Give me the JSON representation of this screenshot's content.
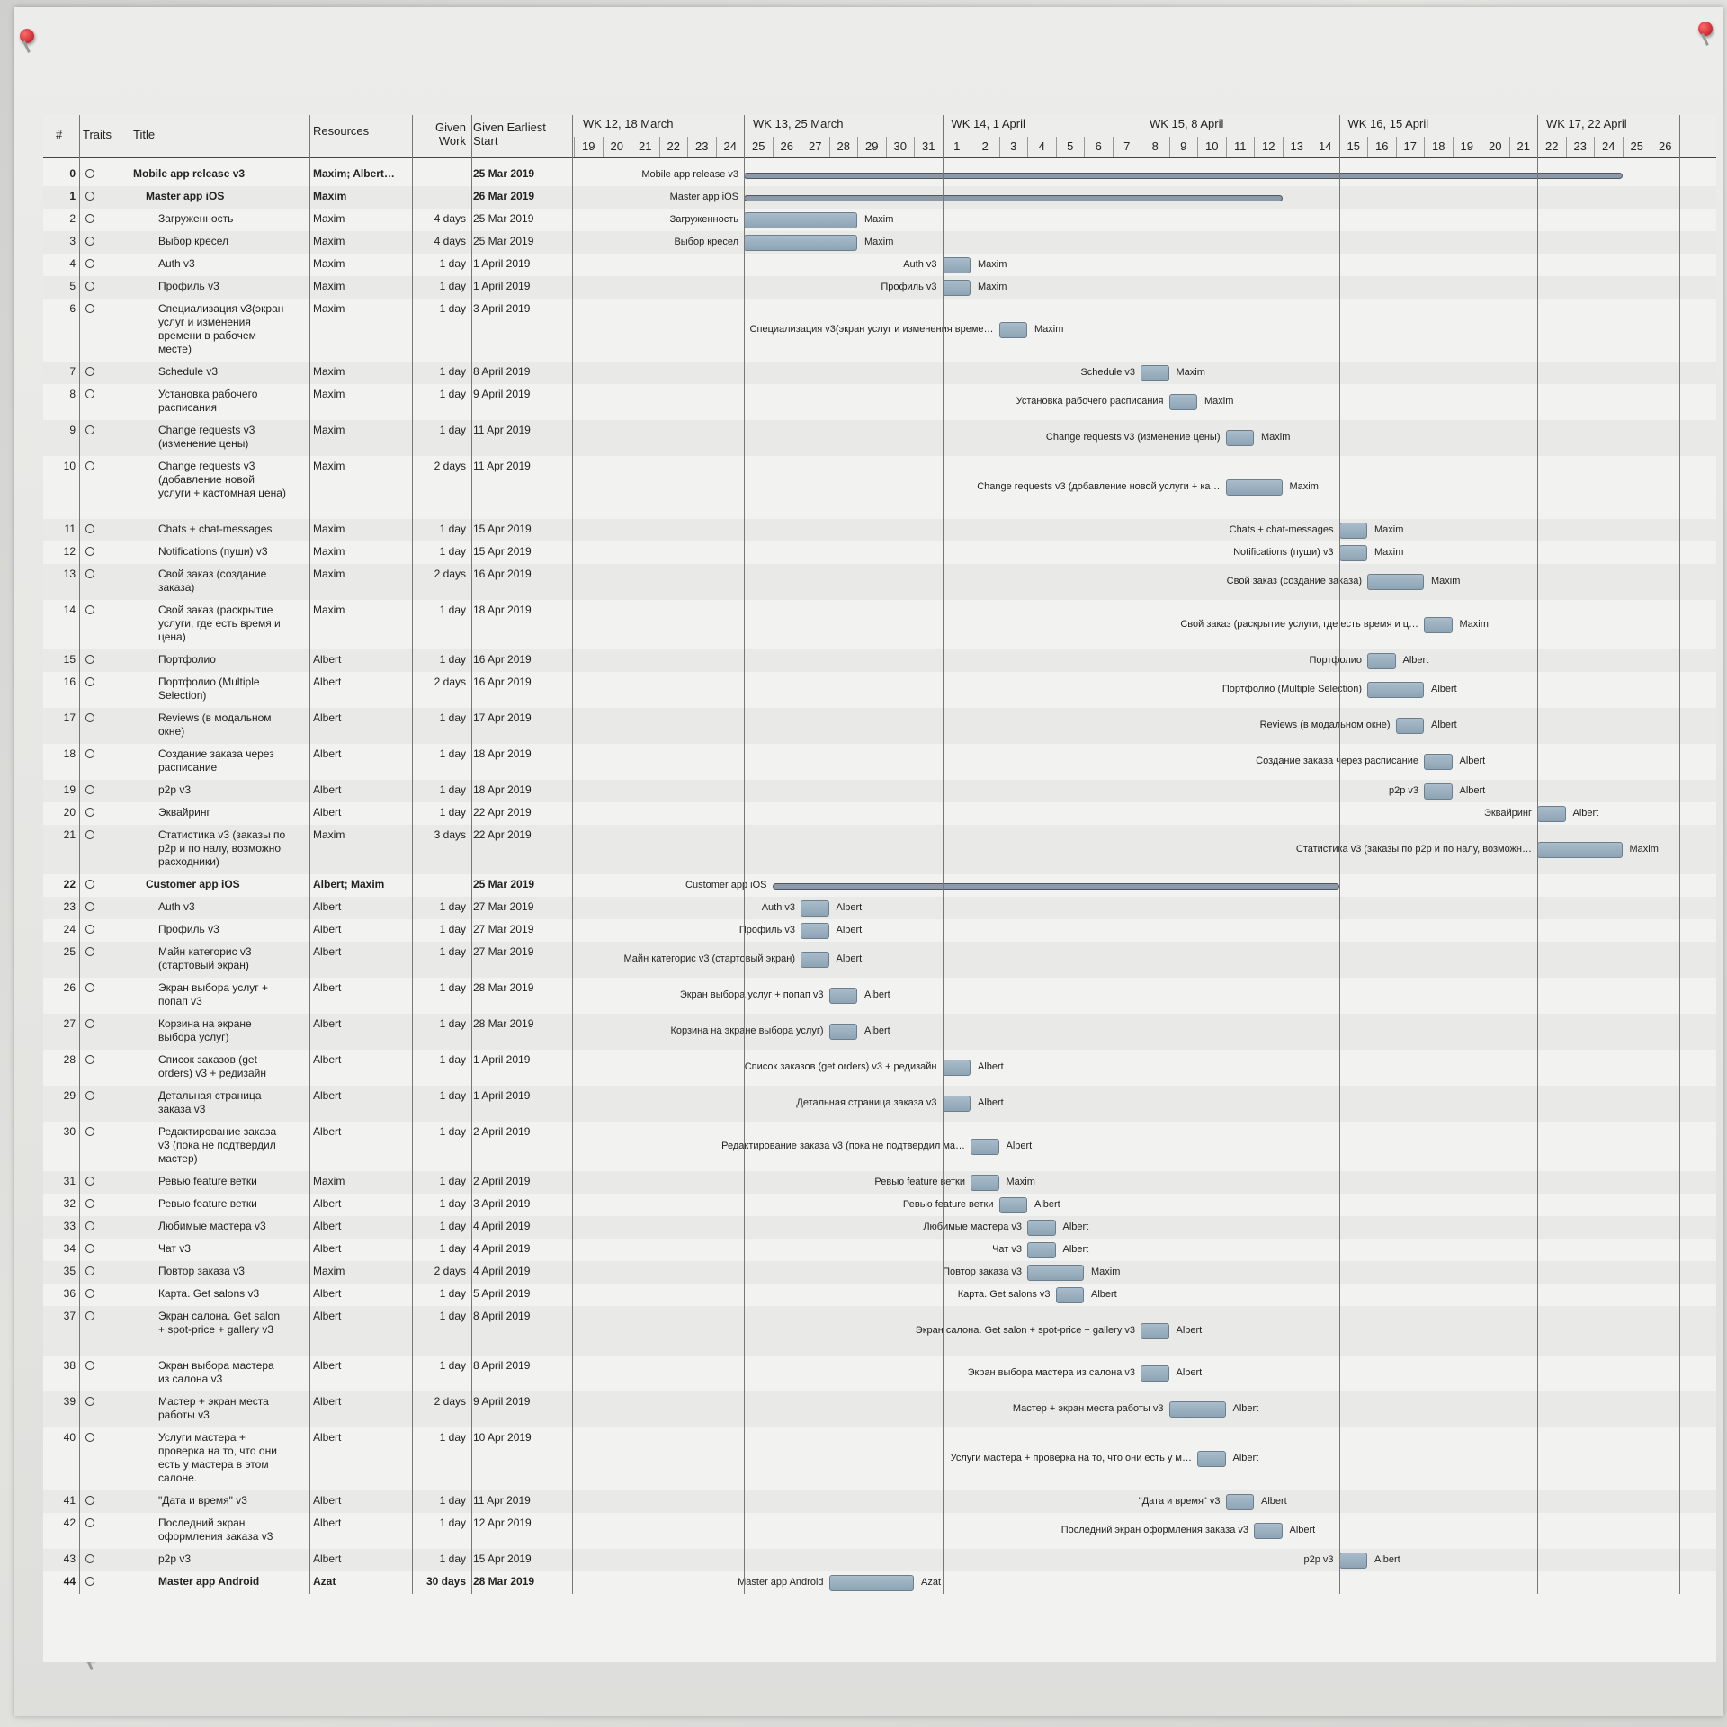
{
  "header": {
    "num": "#",
    "traits": "Traits",
    "title": "Title",
    "resources": "Resources",
    "given_work": "Given\nWork",
    "given_start": "Given Earliest\nStart"
  },
  "weeks": [
    {
      "label": "WK 12, 18 March",
      "days": [
        "19",
        "20",
        "21",
        "22",
        "23",
        "24"
      ]
    },
    {
      "label": "WK 13, 25 March",
      "days": [
        "25",
        "26",
        "27",
        "28",
        "29",
        "30",
        "31"
      ]
    },
    {
      "label": "WK 14, 1 April",
      "days": [
        "1",
        "2",
        "3",
        "4",
        "5",
        "6",
        "7"
      ]
    },
    {
      "label": "WK 15, 8 April",
      "days": [
        "8",
        "9",
        "10",
        "11",
        "12",
        "13",
        "14"
      ]
    },
    {
      "label": "WK 16, 15 April",
      "days": [
        "15",
        "16",
        "17",
        "18",
        "19",
        "20",
        "21"
      ]
    },
    {
      "label": "WK 17, 22 April",
      "days": [
        "22",
        "23",
        "24",
        "25",
        "26"
      ]
    }
  ],
  "tasks": [
    {
      "n": "0",
      "title": "Mobile app release v3",
      "res": "Maxim; Albert…",
      "work": "",
      "start": "25 Mar 2019",
      "bold": true,
      "summary": true,
      "label": "Mobile app release v3",
      "s": 6,
      "e": 37,
      "lines": 1
    },
    {
      "n": "1",
      "title": "Master app iOS",
      "res": "Maxim",
      "work": "",
      "start": "26 Mar 2019",
      "bold": true,
      "summary": true,
      "label": "Master app iOS",
      "s": 6,
      "e": 25,
      "lines": 1
    },
    {
      "n": "2",
      "title": "Загруженность",
      "res": "Maxim",
      "work": "4 days",
      "start": "25 Mar 2019",
      "label": "Загруженность",
      "s": 6,
      "e": 10,
      "lines": 1
    },
    {
      "n": "3",
      "title": "Выбор кресел",
      "res": "Maxim",
      "work": "4 days",
      "start": "25 Mar 2019",
      "label": "Выбор кресел",
      "s": 6,
      "e": 10,
      "lines": 1
    },
    {
      "n": "4",
      "title": "Auth v3",
      "res": "Maxim",
      "work": "1 day",
      "start": "1 April 2019",
      "label": "Auth v3",
      "s": 13,
      "e": 14,
      "lines": 1
    },
    {
      "n": "5",
      "title": "Профиль v3",
      "res": "Maxim",
      "work": "1 day",
      "start": "1 April 2019",
      "label": "Профиль v3",
      "s": 13,
      "e": 14,
      "lines": 1
    },
    {
      "n": "6",
      "title": "Специализация v3(экран услуг и изменения времени в рабочем месте)",
      "res": "Maxim",
      "work": "1 day",
      "start": "3 April 2019",
      "label": "Специализация v3(экран услуг и изменения време…",
      "s": 15,
      "e": 16,
      "lines": 4
    },
    {
      "n": "7",
      "title": "Schedule v3",
      "res": "Maxim",
      "work": "1 day",
      "start": "8 April 2019",
      "label": "Schedule v3",
      "s": 20,
      "e": 21,
      "lines": 1
    },
    {
      "n": "8",
      "title": "Установка рабочего расписания",
      "res": "Maxim",
      "work": "1 day",
      "start": "9 April 2019",
      "label": "Установка рабочего расписания",
      "s": 21,
      "e": 22,
      "lines": 2
    },
    {
      "n": "9",
      "title": "Change requests v3 (изменение цены)",
      "res": "Maxim",
      "work": "1 day",
      "start": "11 Apr 2019",
      "label": "Change requests v3 (изменение цены)",
      "s": 23,
      "e": 24,
      "lines": 2
    },
    {
      "n": "10",
      "title": "Change requests v3 (добавление новой услуги + кастомная цена)",
      "res": "Maxim",
      "work": "2 days",
      "start": "11 Apr 2019",
      "label": "Change requests v3 (добавление новой услуги + ка…",
      "s": 23,
      "e": 25,
      "lines": 4
    },
    {
      "n": "11",
      "title": "Chats + chat-messages",
      "res": "Maxim",
      "work": "1 day",
      "start": "15 Apr 2019",
      "label": "Chats + chat-messages",
      "s": 27,
      "e": 28,
      "lines": 1
    },
    {
      "n": "12",
      "title": "Notifications (пуши) v3",
      "res": "Maxim",
      "work": "1 day",
      "start": "15 Apr 2019",
      "label": "Notifications (пуши) v3",
      "s": 27,
      "e": 28,
      "lines": 1
    },
    {
      "n": "13",
      "title": "Свой заказ (создание заказа)",
      "res": "Maxim",
      "work": "2 days",
      "start": "16 Apr 2019",
      "label": "Свой заказ (создание заказа)",
      "s": 28,
      "e": 30,
      "lines": 2
    },
    {
      "n": "14",
      "title": "Свой заказ (раскрытие услуги, где есть время и цена)",
      "res": "Maxim",
      "work": "1 day",
      "start": "18 Apr 2019",
      "label": "Свой заказ (раскрытие услуги, где есть время и ц…",
      "s": 30,
      "e": 31,
      "lines": 3
    },
    {
      "n": "15",
      "title": "Портфолио",
      "res": "Albert",
      "work": "1 day",
      "start": "16 Apr 2019",
      "label": "Портфолио",
      "s": 28,
      "e": 29,
      "lines": 1
    },
    {
      "n": "16",
      "title": "Портфолио (Multiple Selection)",
      "res": "Albert",
      "work": "2 days",
      "start": "16 Apr 2019",
      "label": "Портфолио (Multiple Selection)",
      "s": 28,
      "e": 30,
      "lines": 2
    },
    {
      "n": "17",
      "title": "Reviews (в модальном окне)",
      "res": "Albert",
      "work": "1 day",
      "start": "17 Apr 2019",
      "label": "Reviews (в модальном окне)",
      "s": 29,
      "e": 30,
      "lines": 2
    },
    {
      "n": "18",
      "title": "Создание заказа через расписание",
      "res": "Albert",
      "work": "1 day",
      "start": "18 Apr 2019",
      "label": "Создание заказа через расписание",
      "s": 30,
      "e": 31,
      "lines": 2
    },
    {
      "n": "19",
      "title": "p2p v3",
      "res": "Albert",
      "work": "1 day",
      "start": "18 Apr 2019",
      "label": "p2p v3",
      "s": 30,
      "e": 31,
      "lines": 1
    },
    {
      "n": "20",
      "title": "Эквайринг",
      "res": "Albert",
      "work": "1 day",
      "start": "22 Apr 2019",
      "label": "Эквайринг",
      "s": 34,
      "e": 35,
      "lines": 1
    },
    {
      "n": "21",
      "title": "Статистика v3 (заказы по p2p и по налу, возможно расходники)",
      "res": "Maxim",
      "work": "3 days",
      "start": "22 Apr 2019",
      "label": "Статистика v3 (заказы по p2p и по налу, возможн…",
      "s": 34,
      "e": 37,
      "lines": 3
    },
    {
      "n": "22",
      "title": "Customer app iOS",
      "res": "Albert; Maxim",
      "work": "",
      "start": "25 Mar 2019",
      "bold": true,
      "summary": true,
      "label": "Customer app iOS",
      "s": 7,
      "e": 27,
      "lines": 1
    },
    {
      "n": "23",
      "title": "Auth v3",
      "res": "Albert",
      "work": "1 day",
      "start": "27 Mar 2019",
      "label": "Auth v3",
      "s": 8,
      "e": 9,
      "lines": 1
    },
    {
      "n": "24",
      "title": "Профиль v3",
      "res": "Albert",
      "work": "1 day",
      "start": "27 Mar 2019",
      "label": "Профиль v3",
      "s": 8,
      "e": 9,
      "lines": 1
    },
    {
      "n": "25",
      "title": "Майн категорис v3 (стартовый экран)",
      "res": "Albert",
      "work": "1 day",
      "start": "27 Mar 2019",
      "label": "Майн категорис v3 (стартовый экран)",
      "s": 8,
      "e": 9,
      "lines": 2
    },
    {
      "n": "26",
      "title": "Экран выбора услуг + попап v3",
      "res": "Albert",
      "work": "1 day",
      "start": "28 Mar 2019",
      "label": "Экран выбора услуг + попап v3",
      "s": 9,
      "e": 10,
      "lines": 2
    },
    {
      "n": "27",
      "title": "Корзина на экране выбора услуг)",
      "res": "Albert",
      "work": "1 day",
      "start": "28 Mar 2019",
      "label": "Корзина на экране выбора услуг)",
      "s": 9,
      "e": 10,
      "lines": 2
    },
    {
      "n": "28",
      "title": "Список заказов (get orders) v3 + редизайн",
      "res": "Albert",
      "work": "1 day",
      "start": "1 April 2019",
      "label": "Список заказов (get orders) v3 + редизайн",
      "s": 13,
      "e": 14,
      "lines": 2
    },
    {
      "n": "29",
      "title": "Детальная страница заказа v3",
      "res": "Albert",
      "work": "1 day",
      "start": "1 April 2019",
      "label": "Детальная страница заказа v3",
      "s": 13,
      "e": 14,
      "lines": 2
    },
    {
      "n": "30",
      "title": "Редактирование заказа v3 (пока не подтвердил мастер)",
      "res": "Albert",
      "work": "1 day",
      "start": "2 April 2019",
      "label": "Редактирование заказа v3 (пока не подтвердил ма…",
      "s": 14,
      "e": 15,
      "lines": 3
    },
    {
      "n": "31",
      "title": "Ревью feature ветки",
      "res": "Maxim",
      "work": "1 day",
      "start": "2 April 2019",
      "label": "Ревью feature ветки",
      "s": 14,
      "e": 15,
      "lines": 1
    },
    {
      "n": "32",
      "title": "Ревью feature ветки",
      "res": "Albert",
      "work": "1 day",
      "start": "3 April 2019",
      "label": "Ревью feature ветки",
      "s": 15,
      "e": 16,
      "lines": 1
    },
    {
      "n": "33",
      "title": "Любимые мастера v3",
      "res": "Albert",
      "work": "1 day",
      "start": "4 April 2019",
      "label": "Любимые мастера v3",
      "s": 16,
      "e": 17,
      "lines": 1
    },
    {
      "n": "34",
      "title": "Чат v3",
      "res": "Albert",
      "work": "1 day",
      "start": "4 April 2019",
      "label": "Чат v3",
      "s": 16,
      "e": 17,
      "lines": 1
    },
    {
      "n": "35",
      "title": "Повтор заказа v3",
      "res": "Maxim",
      "work": "2 days",
      "start": "4 April 2019",
      "label": "Повтор заказа v3",
      "s": 16,
      "e": 18,
      "lines": 1
    },
    {
      "n": "36",
      "title": "Карта. Get salons v3",
      "res": "Albert",
      "work": "1 day",
      "start": "5 April 2019",
      "label": "Карта. Get salons v3",
      "s": 17,
      "e": 18,
      "lines": 1
    },
    {
      "n": "37",
      "title": "Экран салона. Get salon + spot-price + gallery v3",
      "res": "Albert",
      "work": "1 day",
      "start": "8 April 2019",
      "label": "Экран салона. Get salon + spot-price + gallery v3",
      "s": 20,
      "e": 21,
      "lines": 3
    },
    {
      "n": "38",
      "title": "Экран выбора мастера из салона v3",
      "res": "Albert",
      "work": "1 day",
      "start": "8 April 2019",
      "label": "Экран выбора мастера из салона v3",
      "s": 20,
      "e": 21,
      "lines": 2
    },
    {
      "n": "39",
      "title": "Мастер + экран места работы v3",
      "res": "Albert",
      "work": "2 days",
      "start": "9 April 2019",
      "label": "Мастер + экран места работы v3",
      "s": 21,
      "e": 23,
      "lines": 2
    },
    {
      "n": "40",
      "title": "Услуги мастера + проверка на то, что они есть у мастера в этом салоне.",
      "res": "Albert",
      "work": "1 day",
      "start": "10 Apr 2019",
      "label": "Услуги мастера + проверка на то, что они есть у м…",
      "s": 22,
      "e": 23,
      "lines": 4
    },
    {
      "n": "41",
      "title": "\"Дата и время\" v3",
      "res": "Albert",
      "work": "1 day",
      "start": "11 Apr 2019",
      "label": "\"Дата и время\" v3",
      "s": 23,
      "e": 24,
      "lines": 1
    },
    {
      "n": "42",
      "title": "Последний экран оформления заказа v3",
      "res": "Albert",
      "work": "1 day",
      "start": "12 Apr 2019",
      "label": "Последний экран оформления заказа v3",
      "s": 24,
      "e": 25,
      "lines": 2
    },
    {
      "n": "43",
      "title": "p2p v3",
      "res": "Albert",
      "work": "1 day",
      "start": "15 Apr 2019",
      "label": "p2p v3",
      "s": 27,
      "e": 28,
      "lines": 1
    },
    {
      "n": "44",
      "title": "Master app Android",
      "res": "Azat",
      "work": "30 days",
      "start": "28 Mar 2019",
      "bold": true,
      "label": "Master app Android",
      "s": 9,
      "e": 12,
      "lines": 1
    }
  ]
}
